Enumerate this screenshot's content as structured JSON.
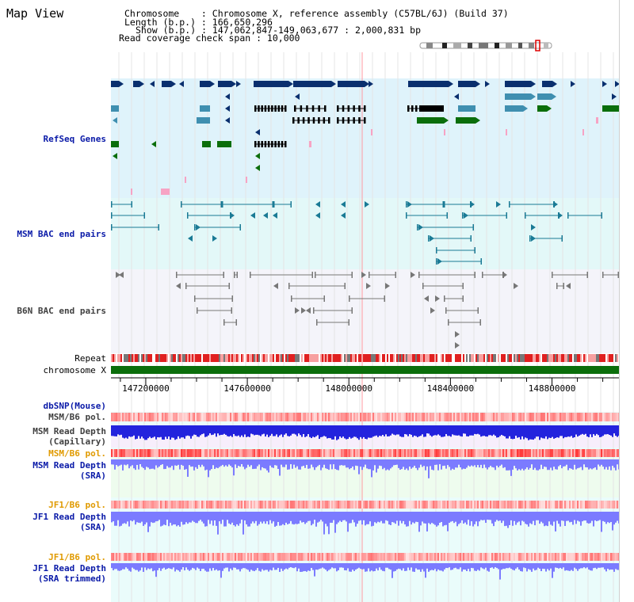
{
  "page": {
    "title": "Map View"
  },
  "info": {
    "chromosome": "Chromosome    : Chromosome X, reference assembly (C57BL/6J) (Build 37)",
    "length": "Length (b.p.) : 166,650,296",
    "show": "Show (b.p.) : 147,062,847-149,063,677 : 2,000,831 bp",
    "coverage": "Read coverage check span : 10,000"
  },
  "tracks": {
    "refseq": "RefSeq Genes",
    "msm_bac": "MSM BAC end pairs",
    "b6n_bac": "B6N BAC end pairs",
    "repeat": "Repeat",
    "chromosome": "chromosome X",
    "dbsnp": "dbSNP(Mouse)",
    "msm_pol_1": "MSM/B6 pol.",
    "msm_depth_cap_1": "MSM Read Depth",
    "msm_depth_cap_2": "(Capillary)",
    "msm_pol_2": "MSM/B6 pol.",
    "msm_depth_sra_1": "MSM Read Depth",
    "msm_depth_sra_2": "(SRA)",
    "jf1_pol_1": "JF1/B6 pol.",
    "jf1_depth_sra_1": "JF1 Read Depth",
    "jf1_depth_sra_2": "(SRA)",
    "jf1_pol_2": "JF1/B6 pol.",
    "jf1_depth_trim_1": "JF1 Read Depth",
    "jf1_depth_trim_2": "(SRA trimmed)"
  },
  "axis": {
    "range": [
      147062847,
      149063677
    ],
    "ticks": [
      {
        "value": 147200000,
        "label": "147200000"
      },
      {
        "value": 147600000,
        "label": "147600000"
      },
      {
        "value": 148000000,
        "label": "148000000"
      },
      {
        "value": 148400000,
        "label": "148400000"
      },
      {
        "value": 148800000,
        "label": "148800000"
      }
    ]
  },
  "colors": {
    "refseq_bg": "#dff3fb",
    "msm_bg": "#e3f8f8",
    "b6n_bg": "#f4f4fa",
    "gene_dark": "#0a2f6e",
    "gene_mid": "#3f8fb0",
    "gene_green": "#0b6e0b",
    "gene_pink": "#f7a3c4",
    "bac_msm": "#1a7a95",
    "bac_b6n": "#777777",
    "chrom_green": "#0b6e0b",
    "depth_blue": "#2323dd",
    "depth_light": "#7b7bff",
    "pol_red": "#ee4444",
    "current_line": "#ff9aa0"
  },
  "icons": {
    "ideogram": "chromosome-ideogram-icon"
  }
}
